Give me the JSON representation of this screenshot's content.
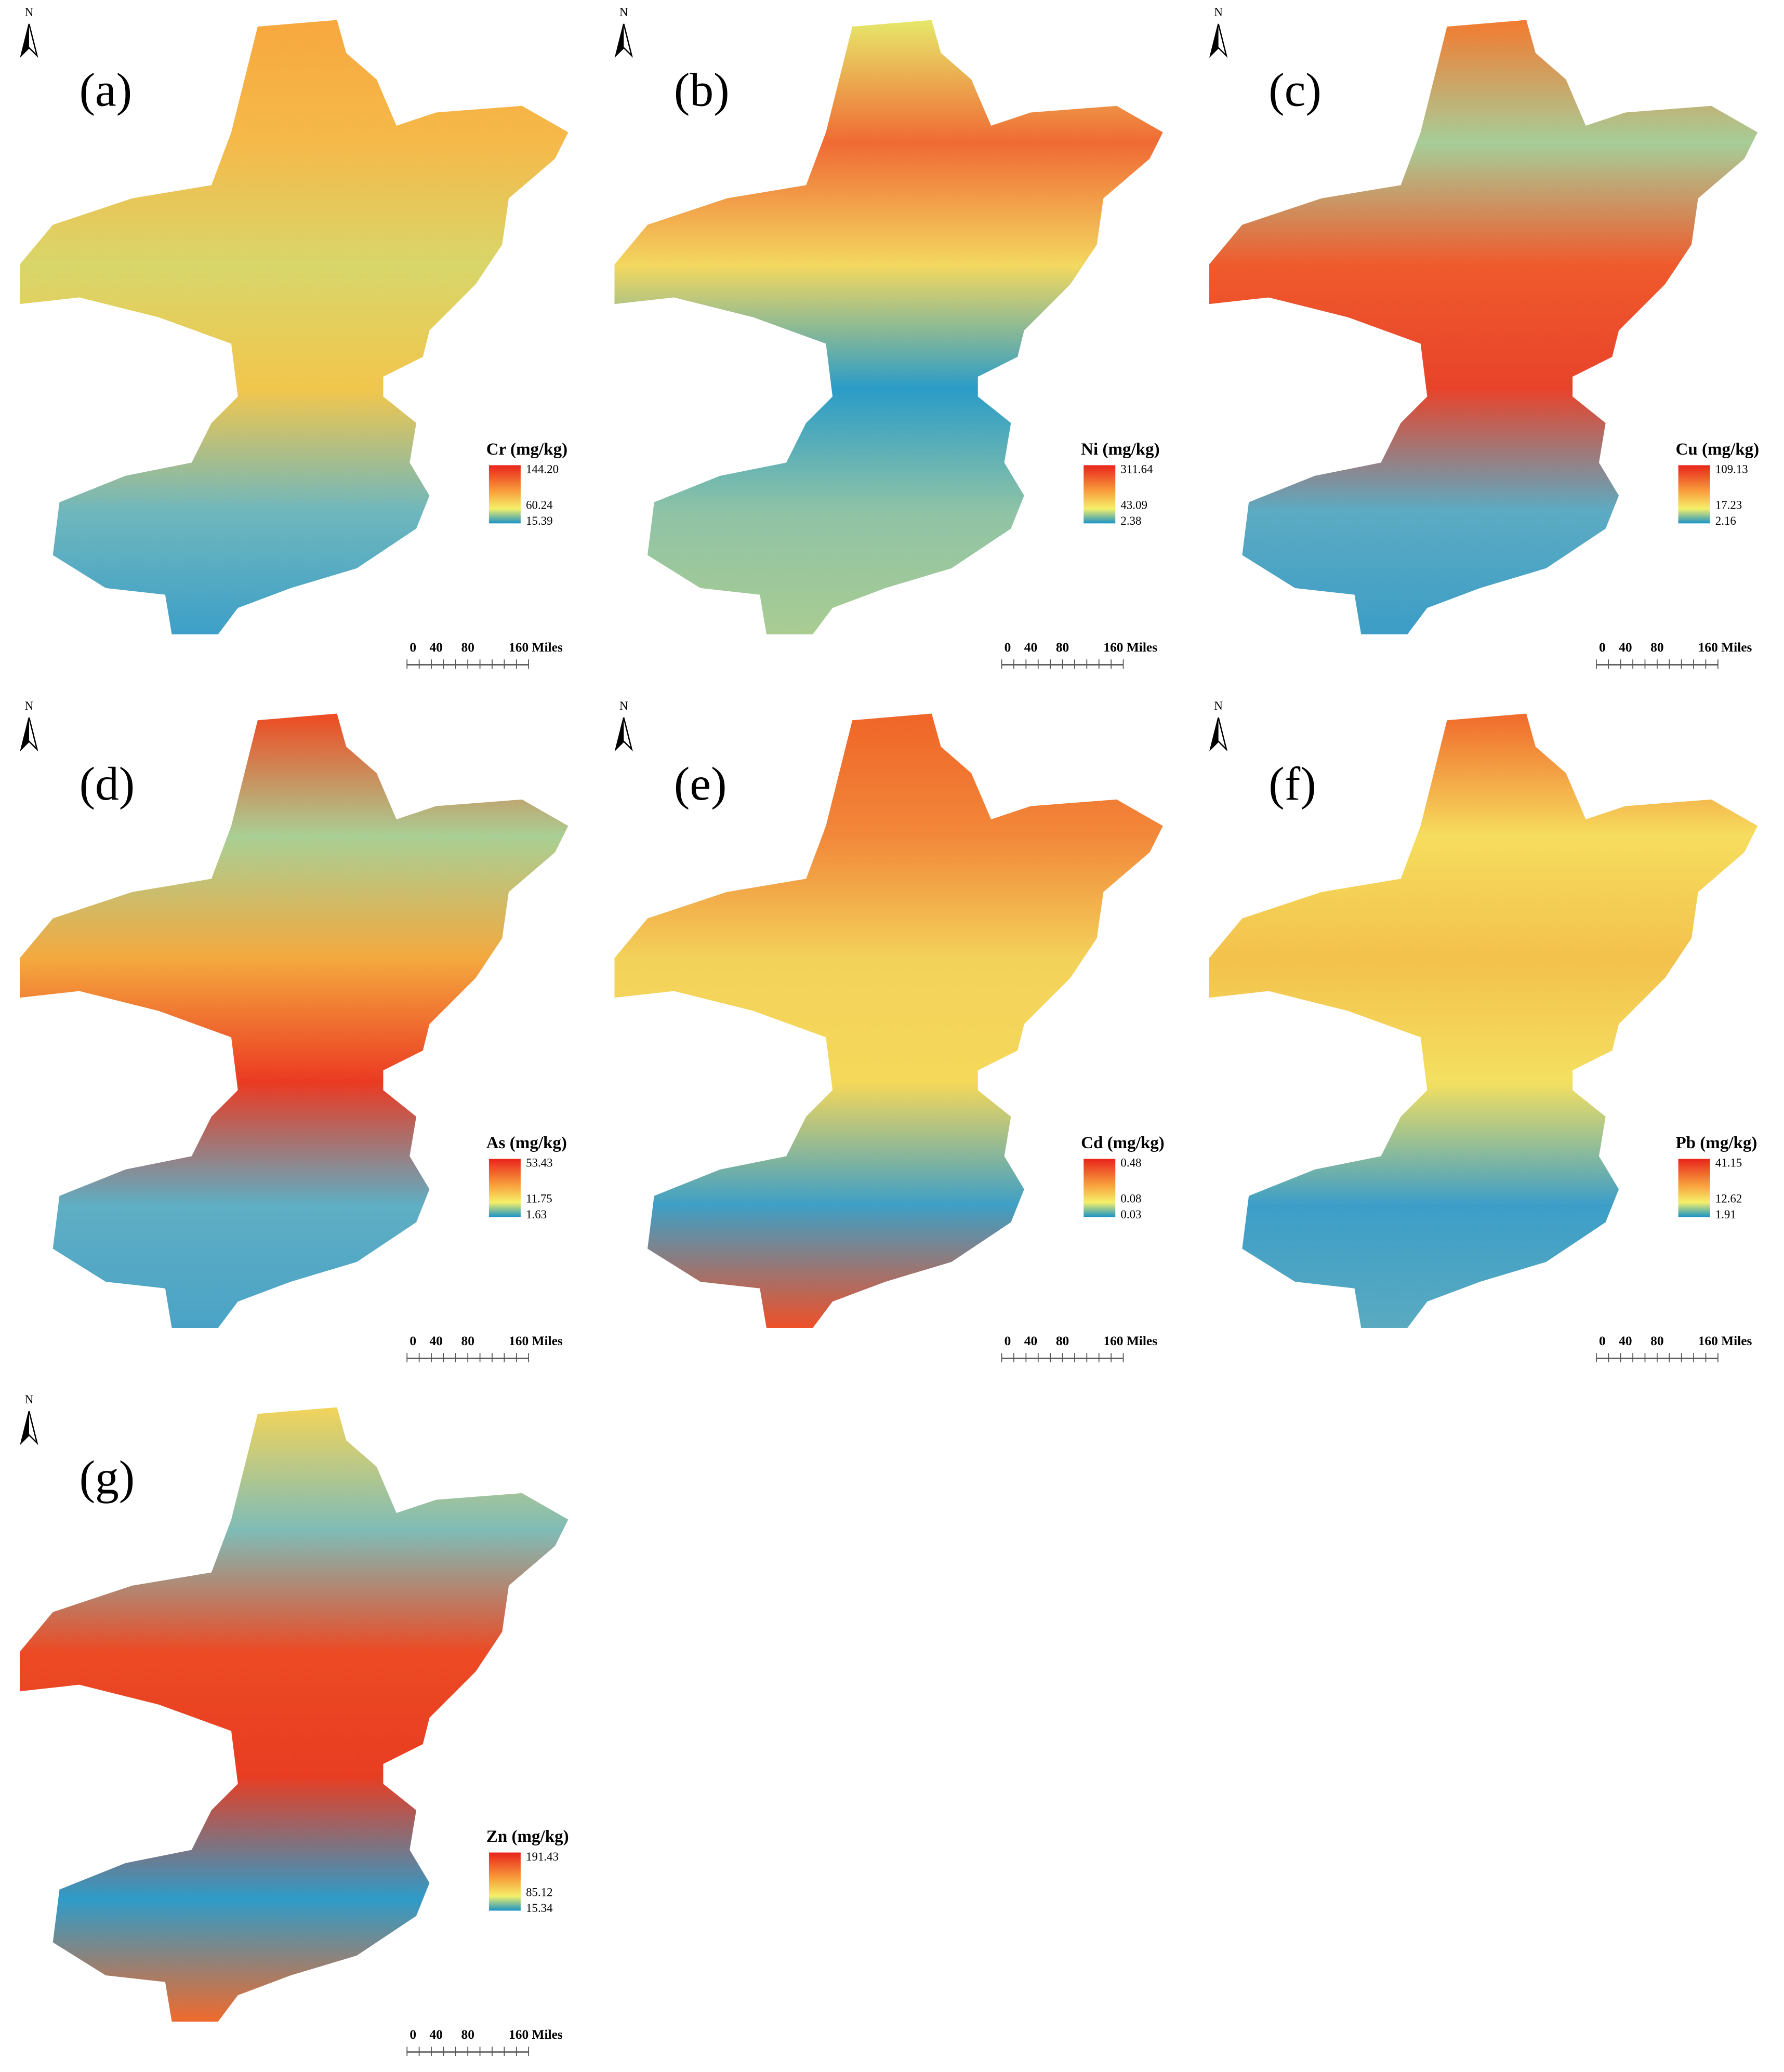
{
  "north": "N",
  "scale": [
    "0",
    "40",
    "80",
    "160 Miles"
  ],
  "panels": [
    {
      "label": "(a)",
      "legend_title": "Cr (mg/kg)",
      "legend_max": "144.20",
      "legend_mid": "60.24",
      "legend_min": "15.39"
    },
    {
      "label": "(b)",
      "legend_title": "Ni (mg/kg)",
      "legend_max": "311.64",
      "legend_mid": "43.09",
      "legend_min": "2.38"
    },
    {
      "label": "(c)",
      "legend_title": "Cu (mg/kg)",
      "legend_max": "109.13",
      "legend_mid": "17.23",
      "legend_min": "2.16"
    },
    {
      "label": "(d)",
      "legend_title": "As (mg/kg)",
      "legend_max": "53.43",
      "legend_mid": "11.75",
      "legend_min": "1.63"
    },
    {
      "label": "(e)",
      "legend_title": "Cd (mg/kg)",
      "legend_max": "0.48",
      "legend_mid": "0.08",
      "legend_min": "0.03"
    },
    {
      "label": "(f)",
      "legend_title": "Pb (mg/kg)",
      "legend_max": "41.15",
      "legend_mid": "12.62",
      "legend_min": "1.91"
    },
    {
      "label": "(g)",
      "legend_title": "Zn (mg/kg)",
      "legend_max": "191.43",
      "legend_mid": "85.12",
      "legend_min": "15.34"
    }
  ]
}
